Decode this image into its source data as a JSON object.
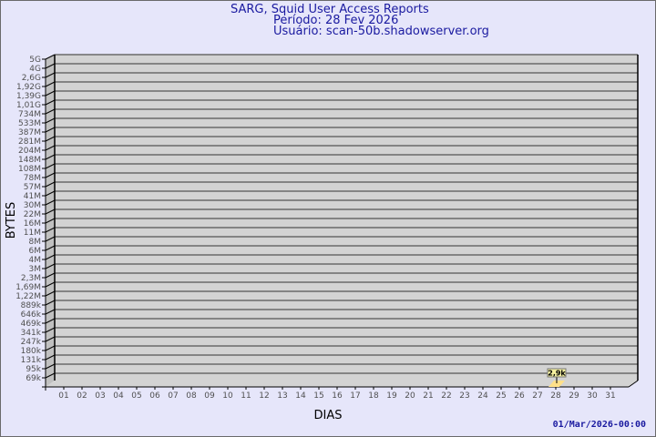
{
  "header": {
    "title": "SARG, Squid User Access Reports",
    "period": "Período: 28 Fev 2026",
    "user": "Usuário: scan-50b.shadowserver.org"
  },
  "footer": {
    "timestamp": "01/Mar/2026-00:00"
  },
  "chart_data": {
    "type": "bar",
    "style": "3d",
    "xlabel": "DIAS",
    "ylabel": "BYTES",
    "y_scale": "log",
    "y_ticks": [
      "5G",
      "4G",
      "2,6G",
      "1,92G",
      "1,39G",
      "1,01G",
      "734M",
      "533M",
      "387M",
      "281M",
      "204M",
      "148M",
      "108M",
      "78M",
      "57M",
      "41M",
      "30M",
      "22M",
      "16M",
      "11M",
      "8M",
      "6M",
      "4M",
      "3M",
      "2,3M",
      "1,69M",
      "1,22M",
      "889k",
      "646k",
      "469k",
      "341k",
      "247k",
      "180k",
      "131k",
      "95k",
      "69k"
    ],
    "categories": [
      "01",
      "02",
      "03",
      "04",
      "05",
      "06",
      "07",
      "08",
      "09",
      "10",
      "11",
      "12",
      "13",
      "14",
      "15",
      "16",
      "17",
      "18",
      "19",
      "20",
      "21",
      "22",
      "23",
      "24",
      "25",
      "26",
      "27",
      "28",
      "29",
      "30",
      "31"
    ],
    "series": [
      {
        "points": [
          {
            "x": "28",
            "value": 2900,
            "label": "2,9k"
          }
        ]
      }
    ],
    "grid": true,
    "colors": {
      "wall": "#d3d3d3",
      "side": "#c0c0c0",
      "grid": "#6a6a6a",
      "bar": "#ffe08a",
      "label_bg": "#f5f0a0",
      "text": "#1a1aa0",
      "background": "#e6e6fa"
    }
  }
}
